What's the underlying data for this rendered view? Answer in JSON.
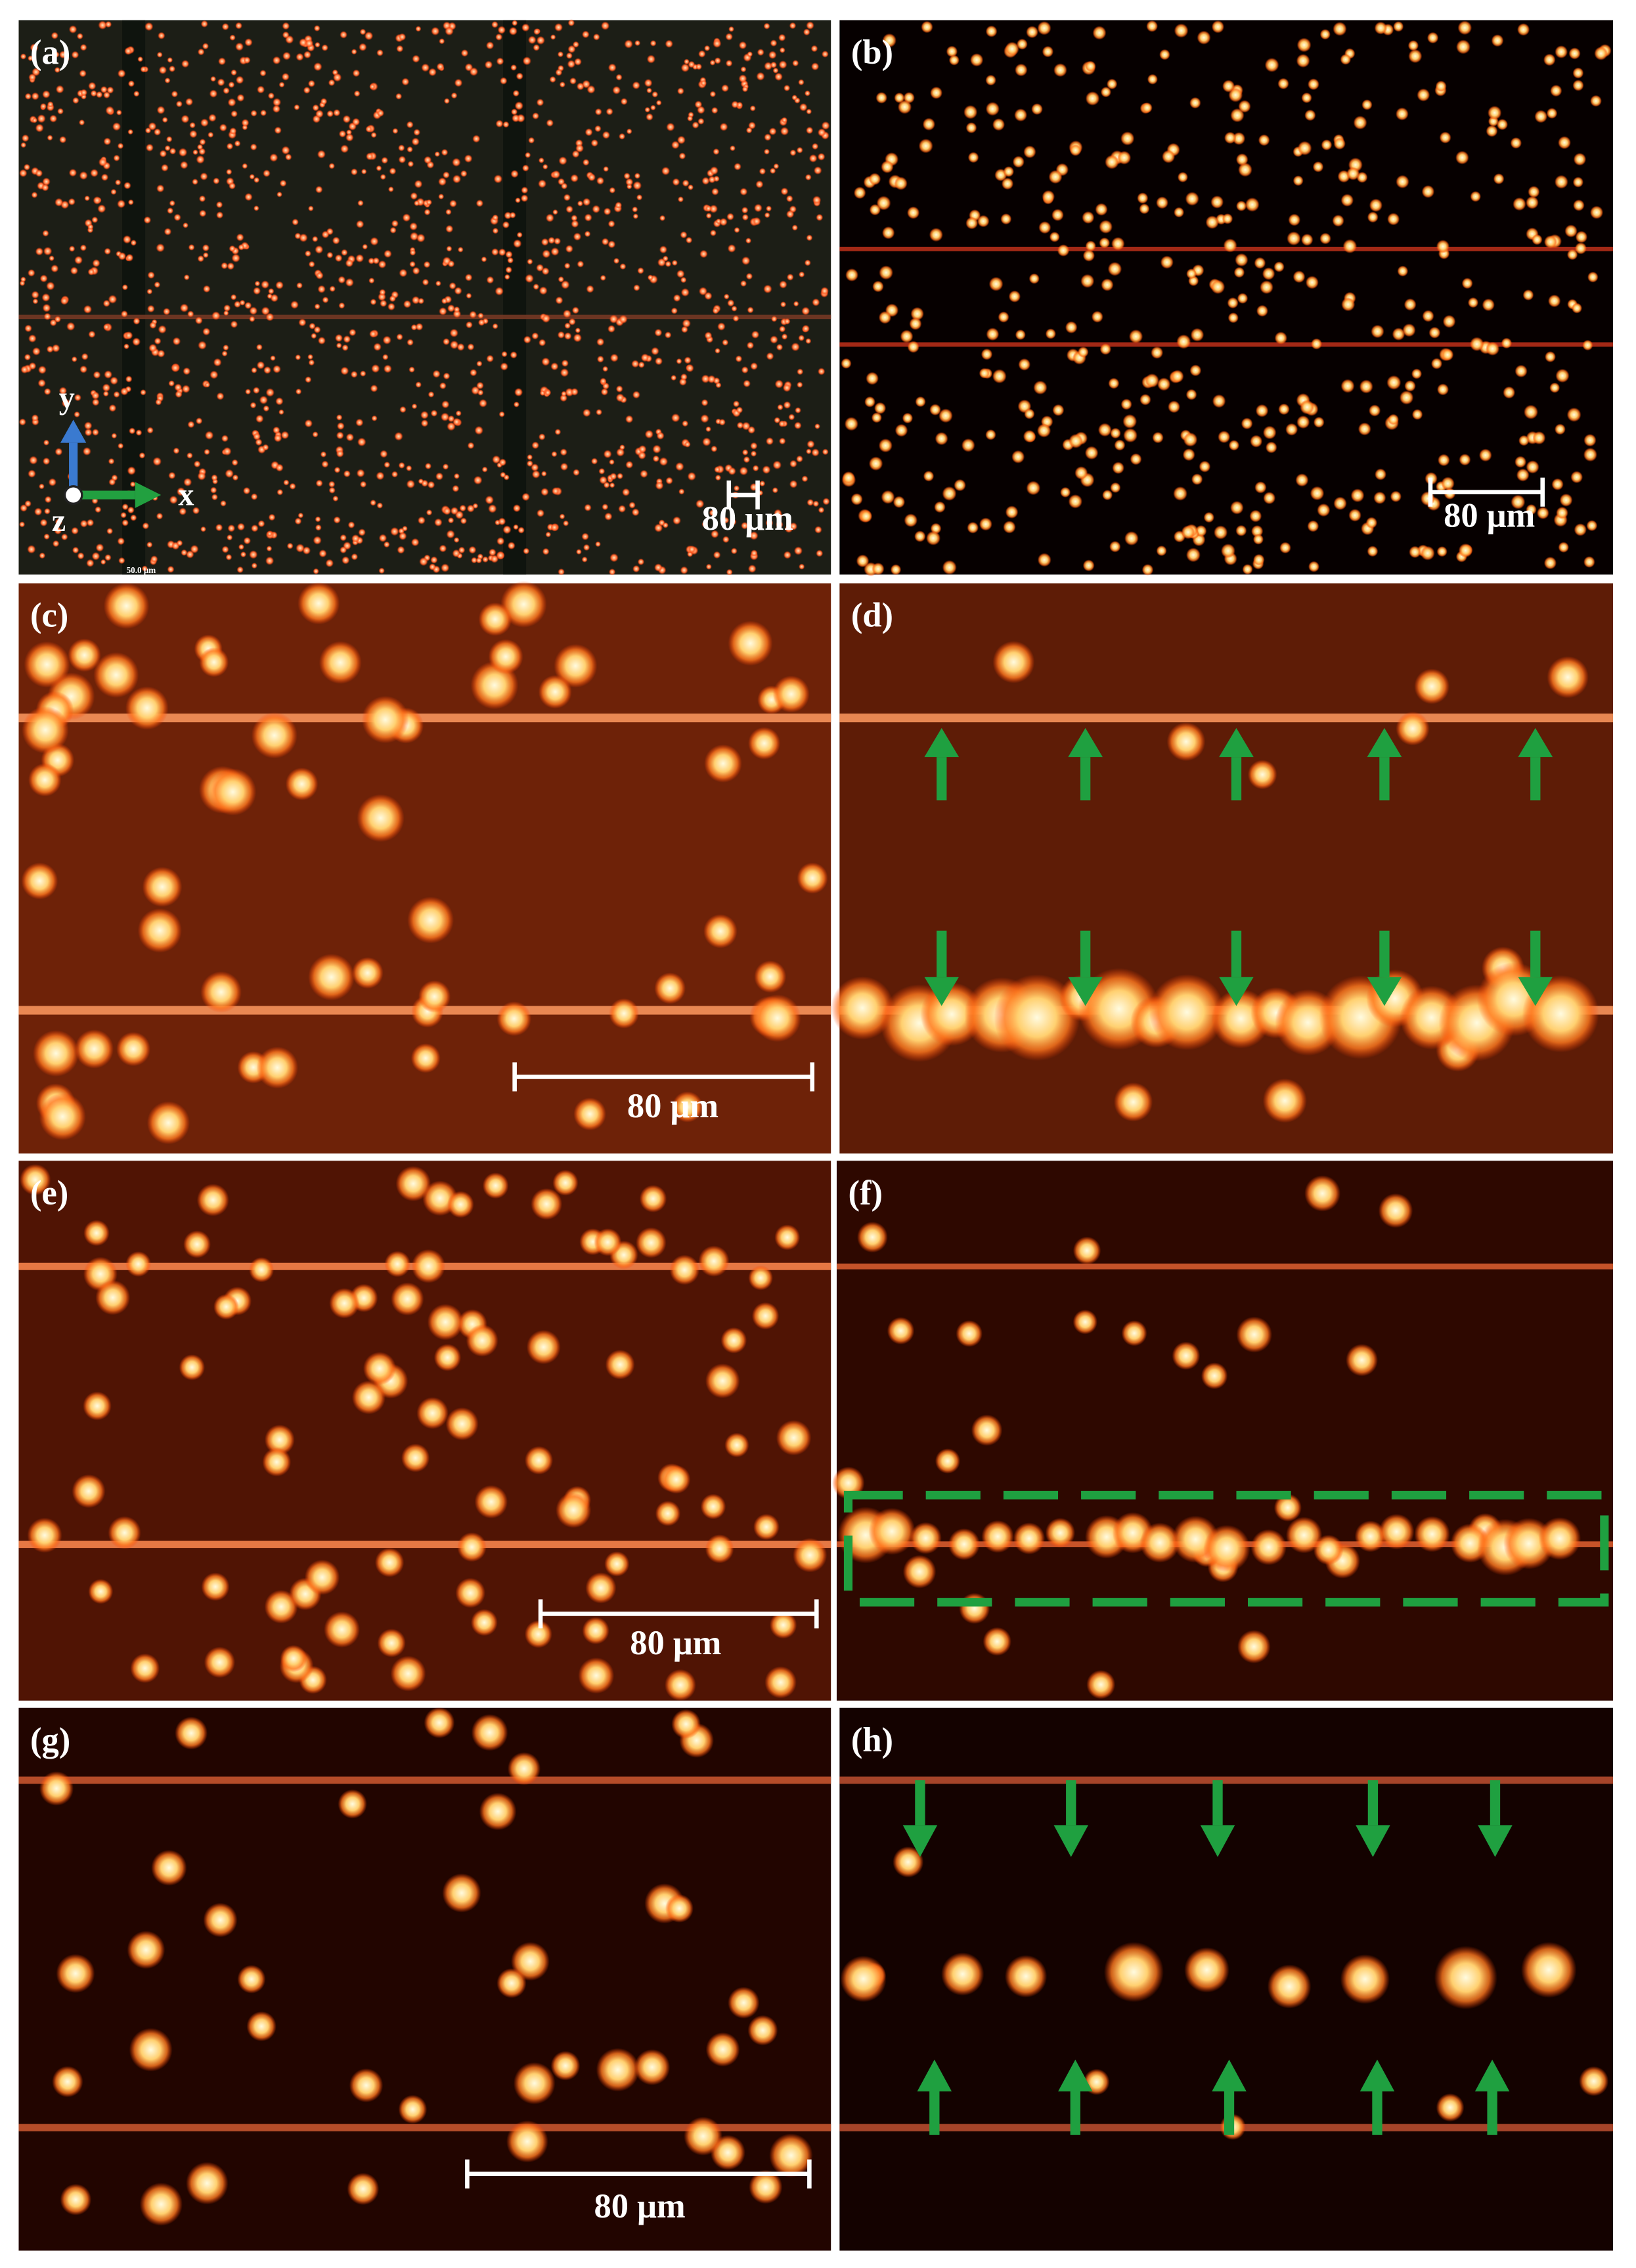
{
  "panels": [
    {
      "label": "(a)",
      "scale_bar": "80 μm",
      "footer": "50.0 μm"
    },
    {
      "label": "(b)",
      "scale_bar": "80 μm"
    },
    {
      "label": "(c)",
      "scale_bar": "80 μm"
    },
    {
      "label": "(d)"
    },
    {
      "label": "(e)",
      "scale_bar": "80 μm"
    },
    {
      "label": "(f)"
    },
    {
      "label": "(g)",
      "scale_bar": "80 μm"
    },
    {
      "label": "(h)"
    }
  ],
  "axes": {
    "x": "x",
    "y": "y",
    "z": "z"
  }
}
